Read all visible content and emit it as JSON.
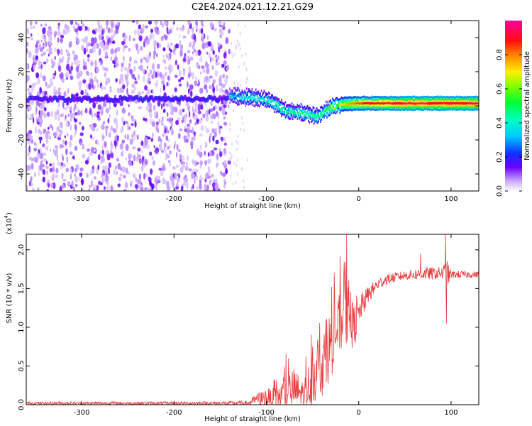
{
  "figure_title": "C2E4.2024.021.12.21.G29",
  "chart_data": [
    {
      "type": "heatmap",
      "title": "",
      "xlabel": "Height of straight line (km)",
      "ylabel": "Frequency (Hz)",
      "xlim": [
        -360,
        130
      ],
      "ylim": [
        -50,
        50
      ],
      "xticks": [
        -300,
        -200,
        -100,
        0,
        100
      ],
      "yticks": [
        -40,
        -20,
        0,
        20,
        40
      ],
      "colorbar": {
        "label": "Normalized spectral amplitude",
        "range": [
          0.0,
          1.0
        ],
        "ticks": [
          0.0,
          0.2,
          0.4,
          0.6,
          0.8
        ],
        "colormap": "rainbow (white - violet - blue - cyan - green - yellow - orange - red - magenta)"
      },
      "features": {
        "noise_region_x": [
          -360,
          -140
        ],
        "noise_band_freq": 4,
        "ridge": {
          "x": [
            -140,
            -120,
            -100,
            -90,
            -80,
            -60,
            -45,
            -35,
            -20,
            0,
            50,
            100,
            130
          ],
          "freq": [
            6,
            5,
            4,
            1,
            -3,
            -4,
            -6,
            -2,
            1,
            1.5,
            1.5,
            1.5,
            1.5
          ],
          "amplitude": [
            0.35,
            0.4,
            0.45,
            0.45,
            0.45,
            0.5,
            0.5,
            0.55,
            0.7,
            0.85,
            0.95,
            0.95,
            0.95
          ]
        }
      }
    },
    {
      "type": "line",
      "title": "",
      "xlabel": "Height of straight line (km)",
      "ylabel": "SNR (10 * v/v)",
      "y_multiplier_label": "(x10",
      "y_multiplier_exp": "4",
      "y_multiplier_close": ")",
      "xlim": [
        -360,
        130
      ],
      "ylim": [
        0.0,
        2.2
      ],
      "xticks": [
        -300,
        -200,
        -100,
        0,
        100
      ],
      "yticks": [
        "0.0",
        "0.5",
        "1.0",
        "1.5",
        "2.0"
      ],
      "ytick_values": [
        0.0,
        0.5,
        1.0,
        1.5,
        2.0
      ],
      "series": [
        {
          "color": "#e8393b",
          "envelope": {
            "x": [
              -360,
              -200,
              -120,
              -110,
              -100,
              -90,
              -80,
              -70,
              -60,
              -50,
              -40,
              -30,
              -20,
              -15,
              -10,
              -5,
              0,
              10,
              20,
              30,
              50,
              70,
              90,
              95,
              100,
              130
            ],
            "mean": [
              0.02,
              0.02,
              0.02,
              0.07,
              0.09,
              0.08,
              0.15,
              0.2,
              0.12,
              0.35,
              0.5,
              0.8,
              1.05,
              1.2,
              1.1,
              1.0,
              1.2,
              1.42,
              1.55,
              1.62,
              1.67,
              1.69,
              1.7,
              1.68,
              1.68,
              1.68
            ],
            "spread": [
              0.02,
              0.02,
              0.03,
              0.08,
              0.12,
              0.14,
              0.22,
              0.28,
              0.2,
              0.35,
              0.4,
              0.45,
              0.4,
              0.45,
              0.35,
              0.3,
              0.18,
              0.12,
              0.08,
              0.07,
              0.06,
              0.08,
              0.08,
              0.2,
              0.05,
              0.04
            ]
          },
          "spikes": [
            {
              "x": -13,
              "y": 2.2
            },
            {
              "x": 94,
              "y": 2.2
            },
            {
              "x": 95,
              "y": 1.05
            },
            {
              "x": 67,
              "y": 1.95
            }
          ]
        }
      ]
    }
  ]
}
